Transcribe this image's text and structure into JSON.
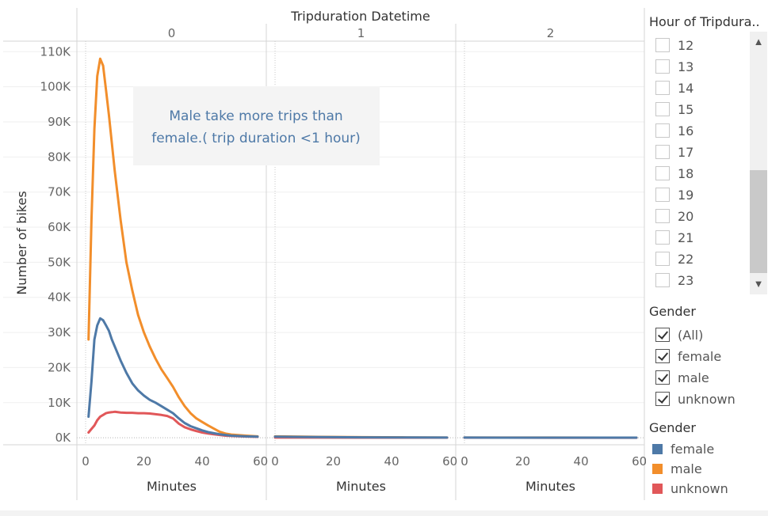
{
  "chart_data": {
    "type": "line",
    "header_title": "Tripduration Datetime",
    "panels": [
      "0",
      "1",
      "2"
    ],
    "xlabel": "Minutes",
    "ylabel": "Number of bikes",
    "xlim": [
      -3,
      62
    ],
    "ylim": [
      -2000,
      113000
    ],
    "x_ticks": [
      0,
      20,
      40,
      60
    ],
    "x_tick_labels": [
      "0",
      "20",
      "40",
      "60"
    ],
    "y_ticks": [
      0,
      10000,
      20000,
      30000,
      40000,
      50000,
      60000,
      70000,
      80000,
      90000,
      100000,
      110000
    ],
    "y_tick_labels": [
      "0K",
      "10K",
      "20K",
      "30K",
      "40K",
      "50K",
      "60K",
      "70K",
      "80K",
      "90K",
      "100K",
      "110K"
    ],
    "grid": true,
    "annotation": [
      "Male take more trips than",
      "female.( trip duration <1 hour)"
    ],
    "series": [
      {
        "name": "female",
        "color": "#4e79a7",
        "panel_data": [
          [
            [
              1,
              6000
            ],
            [
              2,
              16000
            ],
            [
              3,
              28000
            ],
            [
              4,
              32000
            ],
            [
              5,
              34000
            ],
            [
              6,
              33500
            ],
            [
              7,
              32000
            ],
            [
              8,
              30500
            ],
            [
              9,
              28000
            ],
            [
              10,
              26000
            ],
            [
              12,
              22000
            ],
            [
              14,
              18500
            ],
            [
              16,
              15500
            ],
            [
              18,
              13500
            ],
            [
              20,
              12000
            ],
            [
              22,
              10800
            ],
            [
              24,
              10000
            ],
            [
              26,
              9000
            ],
            [
              28,
              8000
            ],
            [
              30,
              7000
            ],
            [
              32,
              5500
            ],
            [
              34,
              4200
            ],
            [
              36,
              3300
            ],
            [
              38,
              2700
            ],
            [
              40,
              2100
            ],
            [
              42,
              1600
            ],
            [
              44,
              1300
            ],
            [
              46,
              1000
            ],
            [
              48,
              800
            ],
            [
              50,
              600
            ],
            [
              55,
              400
            ],
            [
              59,
              300
            ]
          ],
          [
            [
              0,
              300
            ],
            [
              15,
              180
            ],
            [
              30,
              120
            ],
            [
              45,
              80
            ],
            [
              59,
              50
            ]
          ],
          [
            [
              0,
              50
            ],
            [
              30,
              40
            ],
            [
              59,
              30
            ]
          ]
        ]
      },
      {
        "name": "male",
        "color": "#f28e2b",
        "panel_data": [
          [
            [
              1,
              28000
            ],
            [
              2,
              62000
            ],
            [
              3,
              88000
            ],
            [
              4,
              103000
            ],
            [
              5,
              108000
            ],
            [
              6,
              106000
            ],
            [
              7,
              99000
            ],
            [
              8,
              92000
            ],
            [
              9,
              84000
            ],
            [
              10,
              76000
            ],
            [
              12,
              62000
            ],
            [
              14,
              50000
            ],
            [
              16,
              42000
            ],
            [
              18,
              35000
            ],
            [
              20,
              30000
            ],
            [
              22,
              26000
            ],
            [
              24,
              22500
            ],
            [
              26,
              19500
            ],
            [
              28,
              17000
            ],
            [
              30,
              14500
            ],
            [
              32,
              11500
            ],
            [
              34,
              9000
            ],
            [
              36,
              7000
            ],
            [
              38,
              5500
            ],
            [
              40,
              4500
            ],
            [
              42,
              3500
            ],
            [
              44,
              2600
            ],
            [
              46,
              1700
            ],
            [
              48,
              1200
            ],
            [
              50,
              900
            ],
            [
              55,
              600
            ],
            [
              59,
              400
            ]
          ],
          [
            [
              0,
              400
            ],
            [
              15,
              250
            ],
            [
              30,
              160
            ],
            [
              45,
              100
            ],
            [
              59,
              60
            ]
          ],
          [
            [
              0,
              60
            ],
            [
              30,
              50
            ],
            [
              59,
              40
            ]
          ]
        ]
      },
      {
        "name": "unknown",
        "color": "#e15759",
        "panel_data": [
          [
            [
              1,
              1500
            ],
            [
              2,
              2500
            ],
            [
              3,
              3500
            ],
            [
              4,
              5000
            ],
            [
              5,
              6000
            ],
            [
              6,
              6500
            ],
            [
              7,
              7000
            ],
            [
              8,
              7200
            ],
            [
              9,
              7300
            ],
            [
              10,
              7400
            ],
            [
              12,
              7200
            ],
            [
              14,
              7100
            ],
            [
              16,
              7100
            ],
            [
              18,
              7000
            ],
            [
              20,
              7000
            ],
            [
              22,
              6900
            ],
            [
              24,
              6700
            ],
            [
              26,
              6500
            ],
            [
              28,
              6200
            ],
            [
              30,
              5500
            ],
            [
              32,
              4000
            ],
            [
              34,
              3000
            ],
            [
              36,
              2400
            ],
            [
              38,
              1900
            ],
            [
              40,
              1500
            ],
            [
              42,
              1200
            ],
            [
              44,
              1000
            ],
            [
              46,
              800
            ],
            [
              48,
              600
            ],
            [
              50,
              500
            ],
            [
              55,
              350
            ],
            [
              59,
              250
            ]
          ],
          [
            [
              0,
              50
            ],
            [
              30,
              30
            ],
            [
              59,
              20
            ]
          ],
          [
            [
              0,
              20
            ],
            [
              30,
              15
            ],
            [
              59,
              10
            ]
          ]
        ]
      }
    ]
  },
  "filter": {
    "title": "Hour of Tripdura..",
    "items": [
      "12",
      "13",
      "14",
      "15",
      "16",
      "17",
      "18",
      "19",
      "20",
      "21",
      "22",
      "23"
    ],
    "scroll_up_icon": "chevron-up-icon",
    "scroll_down_icon": "chevron-down-icon"
  },
  "gender_filter": {
    "title": "Gender",
    "items": [
      "(All)",
      "female",
      "male",
      "unknown"
    ]
  },
  "legend": {
    "title": "Gender",
    "items": [
      {
        "label": "female",
        "color": "#4e79a7"
      },
      {
        "label": "male",
        "color": "#f28e2b"
      },
      {
        "label": "unknown",
        "color": "#e15759"
      }
    ]
  }
}
